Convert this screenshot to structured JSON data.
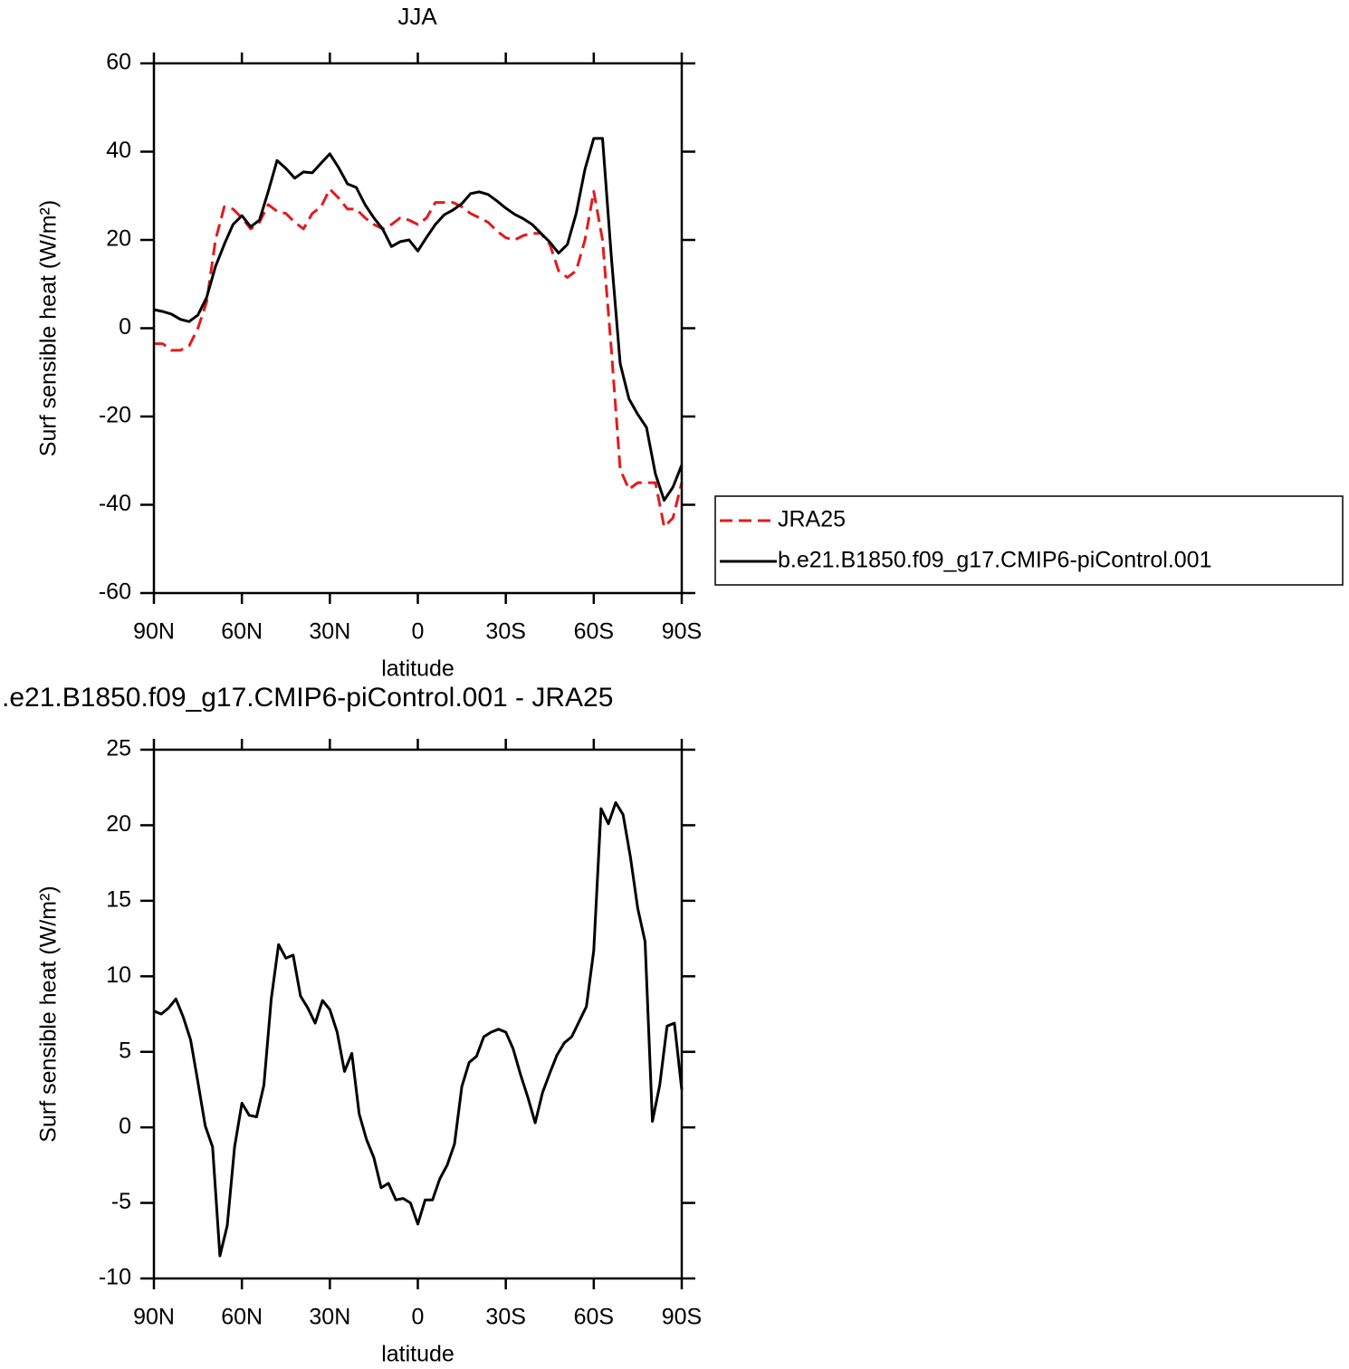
{
  "chart_data": [
    {
      "type": "line",
      "title": "JJA",
      "xlabel": "latitude",
      "ylabel": "Surf sensible heat (W/m²)",
      "x": [
        90,
        87,
        84,
        81,
        78,
        75,
        72,
        69,
        66,
        63,
        60,
        57,
        54,
        51,
        48,
        45,
        42,
        39,
        36,
        33,
        30,
        27,
        24,
        21,
        18,
        15,
        12,
        9,
        6,
        3,
        0,
        -3,
        -6,
        -9,
        -12,
        -15,
        -18,
        -21,
        -24,
        -27,
        -30,
        -33,
        -36,
        -39,
        -42,
        -45,
        -48,
        -51,
        -54,
        -57,
        -60,
        -63,
        -66,
        -69,
        -72,
        -75,
        -78,
        -81,
        -84,
        -87,
        -90
      ],
      "series": [
        {
          "name": "JRA25",
          "color": "#e41a1c",
          "line_style": "dashed",
          "values": [
            -3.5,
            -3.5,
            -5,
            -5,
            -4,
            0,
            6,
            20,
            27.5,
            27,
            25,
            22.5,
            24,
            28,
            26.5,
            26,
            24,
            22.5,
            26,
            27.5,
            31.5,
            29.5,
            27,
            27,
            25,
            23.5,
            22.5,
            23.5,
            25,
            24.5,
            23.5,
            25,
            28.5,
            28.5,
            28.5,
            27.5,
            26,
            25,
            24,
            22,
            20.5,
            20,
            21,
            21.5,
            21.5,
            19,
            13,
            11.5,
            13,
            20,
            31,
            20,
            -5,
            -32,
            -36.5,
            -35,
            -35,
            -35,
            -45,
            -43,
            -35
          ]
        },
        {
          "name": "b.e21.B1850.f09_g17.CMIP6-piControl.001",
          "color": "#000000",
          "line_style": "solid",
          "values": [
            4.2,
            3.8,
            3.2,
            2,
            1.5,
            3,
            7,
            14,
            19,
            23.5,
            25.5,
            23,
            24.5,
            31,
            38,
            36.2,
            34,
            35.4,
            35.2,
            37.4,
            39.5,
            36.4,
            32.7,
            31.9,
            28,
            25,
            22.5,
            18.5,
            19.6,
            20,
            17.5,
            20.6,
            23.5,
            25.7,
            26.8,
            28.2,
            30.5,
            30.9,
            30.3,
            28.8,
            27.2,
            25.8,
            24.8,
            23.5,
            21.5,
            19.5,
            17,
            19,
            26,
            36,
            43,
            43,
            16,
            -8,
            -16,
            -19.5,
            -22.5,
            -33,
            -39,
            -36,
            -31
          ]
        }
      ],
      "xlim": [
        90,
        -90
      ],
      "xticks": [
        {
          "value": 90,
          "label": "90N"
        },
        {
          "value": 60,
          "label": "60N"
        },
        {
          "value": 30,
          "label": "30N"
        },
        0,
        {
          "value": -30,
          "label": "30S"
        },
        {
          "value": -60,
          "label": "60S"
        },
        {
          "value": -90,
          "label": "90S"
        }
      ],
      "ylim": [
        -60,
        60
      ],
      "yticks": [
        -60,
        -40,
        -20,
        0,
        20,
        40,
        60
      ],
      "legend": "right"
    },
    {
      "type": "line",
      "title": ".e21.B1850.f09_g17.CMIP6-piControl.001 - JRA25",
      "xlabel": "latitude",
      "ylabel": "Surf sensible heat (W/m²)",
      "x": [
        90,
        87.5,
        85,
        82.5,
        80,
        77.5,
        75,
        72.5,
        70,
        67.5,
        65,
        62.5,
        60,
        57.5,
        55,
        52.5,
        50,
        47.5,
        45,
        42.5,
        40,
        37.5,
        35,
        32.5,
        30,
        27.5,
        25,
        22.5,
        20,
        17.5,
        15,
        12.5,
        10,
        7.5,
        5,
        2.5,
        0,
        -2.5,
        -5,
        -7.5,
        -10,
        -12.5,
        -15,
        -17.5,
        -20,
        -22.5,
        -25,
        -27.5,
        -30,
        -32.5,
        -35,
        -37.5,
        -40,
        -42.5,
        -45,
        -47.5,
        -50,
        -52.5,
        -55,
        -57.5,
        -60,
        -62.5,
        -65,
        -67.5,
        -70,
        -72.5,
        -75,
        -77.5,
        -80,
        -82.5,
        -85,
        -87.5,
        -90
      ],
      "series": [
        {
          "color": "#000000",
          "line_style": "solid",
          "values": [
            7.7,
            7.5,
            7.9,
            8.5,
            7.3,
            5.8,
            3,
            0.1,
            -1.3,
            -8.5,
            -6.5,
            -1.3,
            1.6,
            0.8,
            0.7,
            2.8,
            8.5,
            12.1,
            11.2,
            11.4,
            8.7,
            7.9,
            6.9,
            8.4,
            7.8,
            6.3,
            3.7,
            4.9,
            0.9,
            -0.8,
            -2,
            -4,
            -3.7,
            -4.8,
            -4.7,
            -5,
            -6.4,
            -4.8,
            -4.8,
            -3.4,
            -2.5,
            -1.1,
            2.7,
            4.3,
            4.7,
            6,
            6.3,
            6.5,
            6.3,
            5.2,
            3.5,
            2,
            0.3,
            2.3,
            3.6,
            4.8,
            5.6,
            6,
            7,
            8,
            11.7,
            21.1,
            20.1,
            21.5,
            20.7,
            17.9,
            14.5,
            12.3,
            0.4,
            2.8,
            6.7,
            6.9,
            2.5
          ]
        }
      ],
      "xlim": [
        90,
        -90
      ],
      "xticks": [
        {
          "value": 90,
          "label": "90N"
        },
        {
          "value": 60,
          "label": "60N"
        },
        {
          "value": 30,
          "label": "30N"
        },
        0,
        {
          "value": -30,
          "label": "30S"
        },
        {
          "value": -60,
          "label": "60S"
        },
        {
          "value": -90,
          "label": "90S"
        }
      ],
      "ylim": [
        -10,
        25
      ],
      "yticks": [
        -10,
        -5,
        0,
        5,
        10,
        15,
        20,
        25
      ]
    }
  ]
}
